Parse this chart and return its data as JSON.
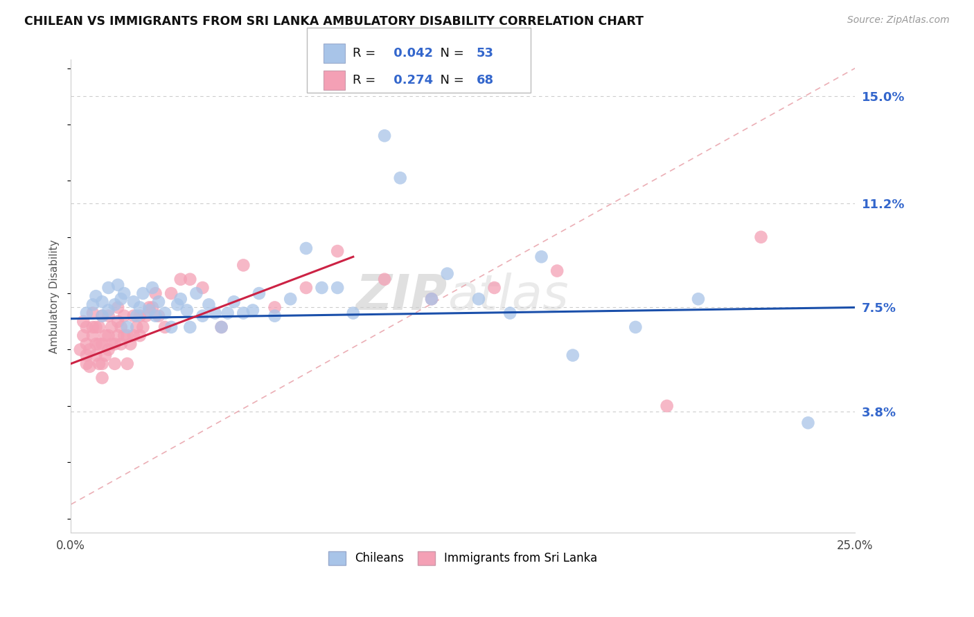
{
  "title": "CHILEAN VS IMMIGRANTS FROM SRI LANKA AMBULATORY DISABILITY CORRELATION CHART",
  "source": "Source: ZipAtlas.com",
  "ylabel": "Ambulatory Disability",
  "xlim": [
    0.0,
    0.25
  ],
  "ylim": [
    -0.005,
    0.163
  ],
  "ytick_positions": [
    0.038,
    0.075,
    0.112,
    0.15
  ],
  "ytick_labels": [
    "3.8%",
    "7.5%",
    "11.2%",
    "15.0%"
  ],
  "legend1_R": "0.042",
  "legend1_N": "53",
  "legend2_R": "0.274",
  "legend2_N": "68",
  "blue_color": "#a8c4e8",
  "pink_color": "#f4a0b5",
  "blue_line_color": "#1a4faa",
  "pink_line_color": "#cc2244",
  "diag_line_color": "#e8a0a8",
  "grid_color": "#cccccc",
  "watermark_zip": "ZIP",
  "watermark_atlas": "atlas",
  "chileans_x": [
    0.005,
    0.007,
    0.008,
    0.01,
    0.01,
    0.012,
    0.012,
    0.014,
    0.015,
    0.016,
    0.017,
    0.018,
    0.02,
    0.021,
    0.022,
    0.023,
    0.025,
    0.026,
    0.027,
    0.028,
    0.03,
    0.032,
    0.034,
    0.035,
    0.037,
    0.038,
    0.04,
    0.042,
    0.044,
    0.046,
    0.048,
    0.05,
    0.052,
    0.055,
    0.058,
    0.06,
    0.065,
    0.07,
    0.075,
    0.08,
    0.085,
    0.09,
    0.1,
    0.105,
    0.115,
    0.12,
    0.13,
    0.14,
    0.15,
    0.16,
    0.18,
    0.2,
    0.235
  ],
  "chileans_y": [
    0.073,
    0.076,
    0.079,
    0.077,
    0.072,
    0.074,
    0.082,
    0.076,
    0.083,
    0.078,
    0.08,
    0.068,
    0.077,
    0.072,
    0.075,
    0.08,
    0.074,
    0.082,
    0.072,
    0.077,
    0.073,
    0.068,
    0.076,
    0.078,
    0.074,
    0.068,
    0.08,
    0.072,
    0.076,
    0.073,
    0.068,
    0.073,
    0.077,
    0.073,
    0.074,
    0.08,
    0.072,
    0.078,
    0.096,
    0.082,
    0.082,
    0.073,
    0.136,
    0.121,
    0.078,
    0.087,
    0.078,
    0.073,
    0.093,
    0.058,
    0.068,
    0.078,
    0.034
  ],
  "srilanka_x": [
    0.003,
    0.004,
    0.004,
    0.005,
    0.005,
    0.005,
    0.005,
    0.006,
    0.006,
    0.007,
    0.007,
    0.007,
    0.008,
    0.008,
    0.008,
    0.009,
    0.009,
    0.009,
    0.01,
    0.01,
    0.01,
    0.01,
    0.011,
    0.011,
    0.012,
    0.012,
    0.012,
    0.013,
    0.013,
    0.014,
    0.014,
    0.015,
    0.015,
    0.015,
    0.016,
    0.016,
    0.017,
    0.017,
    0.018,
    0.018,
    0.019,
    0.02,
    0.02,
    0.021,
    0.022,
    0.022,
    0.023,
    0.024,
    0.025,
    0.026,
    0.027,
    0.028,
    0.03,
    0.032,
    0.035,
    0.038,
    0.042,
    0.048,
    0.055,
    0.065,
    0.075,
    0.085,
    0.1,
    0.115,
    0.135,
    0.155,
    0.19,
    0.22
  ],
  "srilanka_y": [
    0.06,
    0.065,
    0.07,
    0.055,
    0.058,
    0.062,
    0.068,
    0.054,
    0.06,
    0.065,
    0.068,
    0.073,
    0.058,
    0.062,
    0.068,
    0.055,
    0.062,
    0.068,
    0.05,
    0.055,
    0.062,
    0.072,
    0.058,
    0.065,
    0.06,
    0.065,
    0.072,
    0.062,
    0.068,
    0.055,
    0.062,
    0.065,
    0.07,
    0.075,
    0.062,
    0.068,
    0.065,
    0.072,
    0.055,
    0.065,
    0.062,
    0.065,
    0.072,
    0.068,
    0.065,
    0.072,
    0.068,
    0.072,
    0.075,
    0.075,
    0.08,
    0.072,
    0.068,
    0.08,
    0.085,
    0.085,
    0.082,
    0.068,
    0.09,
    0.075,
    0.082,
    0.095,
    0.085,
    0.078,
    0.082,
    0.088,
    0.04,
    0.1
  ],
  "diag_line_x": [
    0.0,
    0.25
  ],
  "diag_line_y": [
    0.005,
    0.16
  ]
}
